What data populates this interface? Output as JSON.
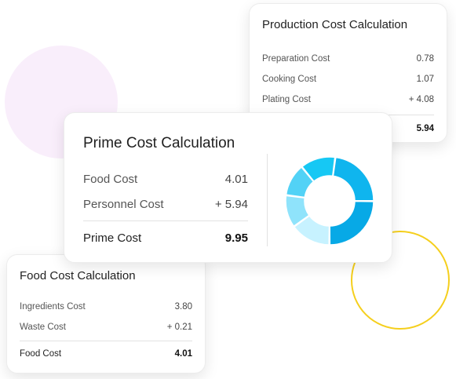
{
  "production": {
    "title": "Production Cost Calculation",
    "rows": [
      {
        "label": "Preparation Cost",
        "value": "0.78"
      },
      {
        "label": "Cooking Cost",
        "value": "1.07"
      },
      {
        "label": "Plating Cost",
        "value": "+ 4.08"
      }
    ],
    "total_value": "5.94"
  },
  "prime": {
    "title": "Prime Cost Calculation",
    "rows": [
      {
        "label": "Food Cost",
        "value": "4.01"
      },
      {
        "label": "Personnel Cost",
        "value": "+ 5.94"
      }
    ],
    "total_label": "Prime Cost",
    "total_value": "9.95"
  },
  "food": {
    "title": "Food Cost Calculation",
    "rows": [
      {
        "label": "Ingredients Cost",
        "value": "3.80"
      },
      {
        "label": "Waste Cost",
        "value": "+ 0.21"
      }
    ],
    "total_label": "Food Cost",
    "total_value": "4.01"
  },
  "donut": {
    "segments": [
      {
        "value": 23,
        "color": "#0fb5ee"
      },
      {
        "value": 25,
        "color": "#07a9e6"
      },
      {
        "value": 15,
        "color": "#c7f2ff"
      },
      {
        "value": 12,
        "color": "#8fe3fb"
      },
      {
        "value": 12,
        "color": "#52d2f6"
      },
      {
        "value": 13,
        "color": "#16c8f4"
      }
    ]
  },
  "colors": {
    "pink_circle": "#f9eefb",
    "yellow_ring": "#f5cf1d"
  }
}
